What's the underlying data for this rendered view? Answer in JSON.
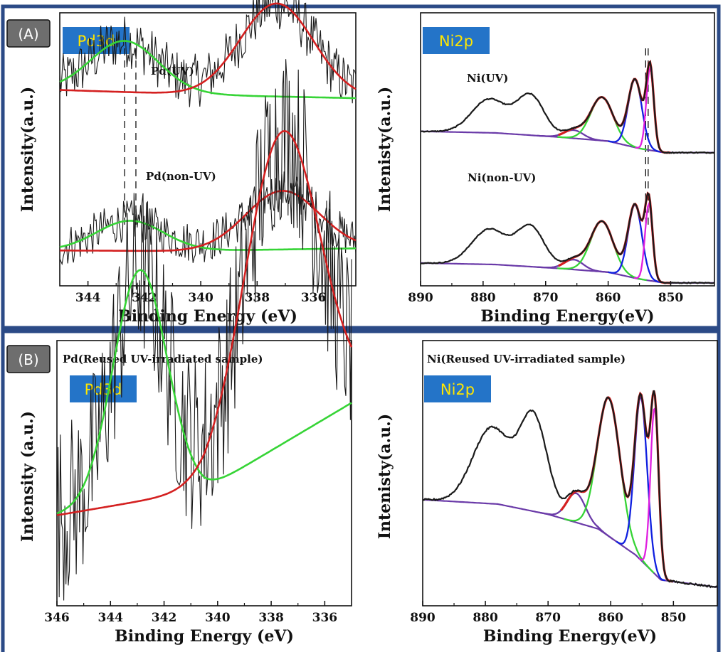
{
  "colors": {
    "frame": "#2b4a86",
    "raw": "#1a1a1a",
    "red": "#d42020",
    "green": "#36d436",
    "blue": "#1020e0",
    "magenta": "#e020e0",
    "purple": "#6a3aa8",
    "badge_bg": "#2474c8",
    "badge_text": "#ffe600",
    "tag_bg": "#6e6e6e"
  },
  "panels": [
    {
      "tag": "(A)"
    },
    {
      "tag": "(B)"
    }
  ],
  "chart_data": [
    {
      "id": "A-Pd3d",
      "type": "line",
      "badge": "Pd3d",
      "xlabel": "Binding Energy (eV)",
      "ylabel": "Intensity(a.u.)",
      "xlim": [
        345,
        334.5
      ],
      "xticks": [
        344,
        342,
        340,
        338,
        336
      ],
      "reference_lines_x": [
        342.7,
        342.3
      ],
      "series": [
        {
          "name": "Pd(UV)",
          "offset": 0.62,
          "noise": 0.09,
          "amplitude": 0.17,
          "peaks": [
            {
              "center": 342.7,
              "height": 1.0,
              "width": 1.2
            },
            {
              "center": 337.3,
              "height": 1.82,
              "width": 1.3
            }
          ],
          "background": [
            [
              345,
              0.52
            ],
            [
              341,
              0.45
            ],
            [
              338,
              0.4
            ],
            [
              334.5,
              0.36
            ]
          ]
        },
        {
          "name": "Pd(non-UV)",
          "offset": 0.08,
          "noise": 0.07,
          "amplitude": 0.1,
          "peaks": [
            {
              "center": 342.5,
              "height": 1.0,
              "width": 1.2
            },
            {
              "center": 337.1,
              "height": 1.95,
              "width": 1.3
            }
          ],
          "background": [
            [
              345,
              0.45
            ],
            [
              341,
              0.43
            ],
            [
              338,
              0.47
            ],
            [
              334.5,
              0.52
            ]
          ]
        }
      ]
    },
    {
      "id": "A-Ni2p",
      "type": "line",
      "badge": "Ni2p",
      "xlabel": "Binding Energy(eV)",
      "ylabel": "Intenisty(a.u.)",
      "xlim": [
        890,
        843
      ],
      "xticks": [
        890,
        880,
        870,
        860,
        850
      ],
      "reference_lines_x": [
        854,
        853.6
      ],
      "series": [
        {
          "name": "Ni(UV)",
          "offset": 0.53,
          "scale": 0.3,
          "background": [
            [
              890,
              0.12
            ],
            [
              878,
              0.1
            ],
            [
              868,
              0.05
            ],
            [
              860,
              0.0
            ],
            [
              855,
              -0.09
            ],
            [
              851,
              -0.14
            ],
            [
              843,
              -0.14
            ]
          ],
          "peaks": [
            {
              "component": "satellite",
              "center": 879,
              "height": 0.41,
              "width": 2.8
            },
            {
              "component": "satellite",
              "center": 872.4,
              "height": 0.48,
              "width": 2.2
            },
            {
              "component": "purple",
              "center": 865.5,
              "height": 0.1,
              "width": 1.5
            },
            {
              "component": "green",
              "center": 861,
              "height": 0.53,
              "width": 1.8
            },
            {
              "component": "blue",
              "center": 855.7,
              "height": 0.83,
              "width": 1.1
            },
            {
              "component": "magenta",
              "center": 853.3,
              "height": 1.0,
              "width": 0.6
            }
          ]
        },
        {
          "name": "Ni(non-UV)",
          "offset": 0.05,
          "scale": 0.28,
          "background": [
            [
              890,
              0.12
            ],
            [
              878,
              0.1
            ],
            [
              868,
              0.05
            ],
            [
              860,
              0.0
            ],
            [
              855,
              -0.09
            ],
            [
              851,
              -0.14
            ],
            [
              843,
              -0.14
            ]
          ],
          "peaks": [
            {
              "component": "satellite",
              "center": 879,
              "height": 0.46,
              "width": 2.8
            },
            {
              "component": "satellite",
              "center": 872.4,
              "height": 0.52,
              "width": 2.2
            },
            {
              "component": "purple",
              "center": 865.5,
              "height": 0.13,
              "width": 1.5
            },
            {
              "component": "green",
              "center": 861,
              "height": 0.66,
              "width": 1.8
            },
            {
              "component": "blue",
              "center": 855.7,
              "height": 0.96,
              "width": 1.1
            },
            {
              "component": "magenta",
              "center": 853.5,
              "height": 1.0,
              "width": 0.6
            }
          ]
        }
      ]
    },
    {
      "id": "B-Pd3d",
      "type": "line",
      "badge": "Pd3d",
      "title": "Pd(Reused UV-irradiated sample)",
      "xlabel": "Binding Energy (eV)",
      "ylabel": "Intensity (a.u.)",
      "xlim": [
        346,
        335
      ],
      "xticks": [
        346,
        344,
        342,
        340,
        338,
        336
      ],
      "series": [
        {
          "name": "",
          "offset": 0.2,
          "noise": 0.16,
          "amplitude": 0.55,
          "peaks": [
            {
              "center": 342.9,
              "height": 0.74,
              "width": 1.0
            },
            {
              "center": 337.6,
              "height": 1.0,
              "width": 1.4
            }
          ],
          "background": [
            [
              346,
              0.12
            ],
            [
              340.5,
              0.2
            ],
            [
              335,
              0.48
            ]
          ]
        }
      ]
    },
    {
      "id": "B-Ni2p",
      "type": "line",
      "badge": "Ni2p",
      "title": "Ni(Reused UV-irradiated sample)",
      "xlabel": "Binding Energy(eV)",
      "ylabel": "Intenisty(a.u.)",
      "xlim": [
        890,
        843
      ],
      "xticks": [
        890,
        880,
        870,
        860,
        850
      ],
      "series": [
        {
          "name": "",
          "offset": 0.4,
          "scale": 0.55,
          "background": [
            [
              890,
              0.0
            ],
            [
              878,
              -0.03
            ],
            [
              870,
              -0.1
            ],
            [
              862,
              -0.2
            ],
            [
              856,
              -0.38
            ],
            [
              852,
              -0.55
            ],
            [
              843,
              -0.6
            ]
          ],
          "peaks": [
            {
              "component": "satellite",
              "center": 879,
              "height": 0.52,
              "width": 3.0
            },
            {
              "component": "satellite",
              "center": 872.3,
              "height": 0.64,
              "width": 2.2
            },
            {
              "component": "purple",
              "center": 865.5,
              "height": 0.2,
              "width": 1.5
            },
            {
              "component": "green",
              "center": 860.3,
              "height": 0.95,
              "width": 1.8
            },
            {
              "component": "blue",
              "center": 855.2,
              "height": 1.12,
              "width": 1.0
            },
            {
              "component": "magenta",
              "center": 853.0,
              "height": 1.14,
              "width": 0.65
            }
          ]
        }
      ]
    }
  ]
}
